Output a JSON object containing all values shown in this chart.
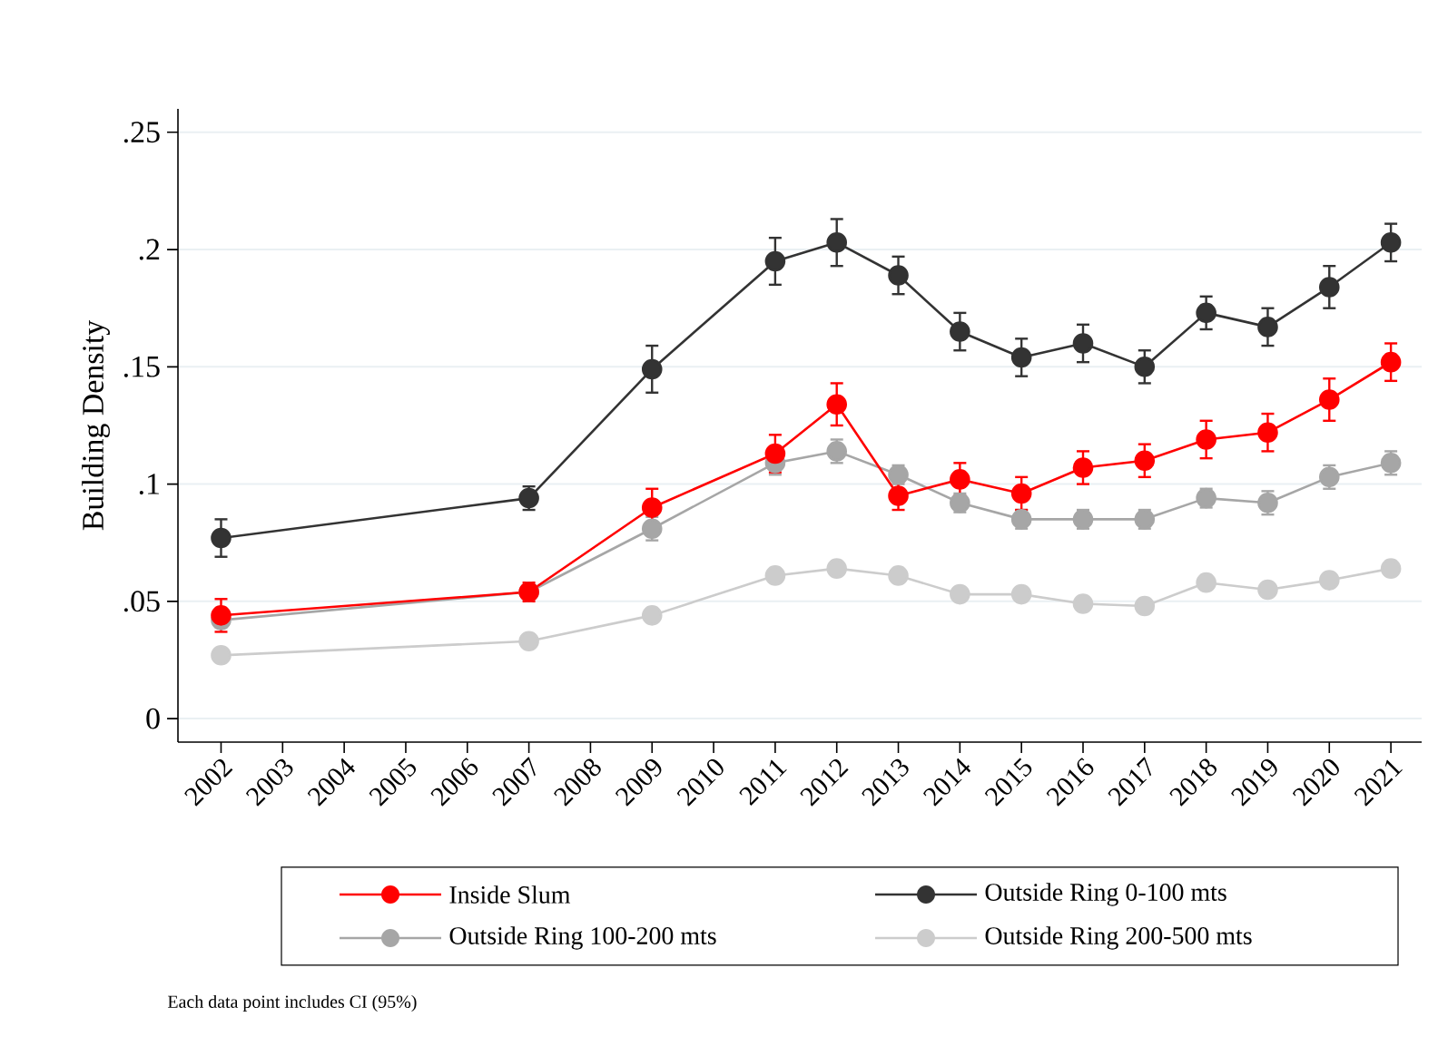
{
  "chart_data": {
    "type": "line",
    "ylabel": "Building Density",
    "x": [
      2002,
      2007,
      2009,
      2011,
      2012,
      2013,
      2014,
      2015,
      2016,
      2017,
      2018,
      2019,
      2020,
      2021
    ],
    "xlim": [
      2001.3,
      2021.5
    ],
    "xticks": [
      2002,
      2003,
      2004,
      2005,
      2006,
      2007,
      2008,
      2009,
      2010,
      2011,
      2012,
      2013,
      2014,
      2015,
      2016,
      2017,
      2018,
      2019,
      2020,
      2021
    ],
    "ylim": [
      -0.01,
      0.26
    ],
    "yticks": [
      {
        "value": 0,
        "label": "0"
      },
      {
        "value": 0.05,
        "label": ".05"
      },
      {
        "value": 0.1,
        "label": ".1"
      },
      {
        "value": 0.15,
        "label": ".15"
      },
      {
        "value": 0.2,
        "label": ".2"
      },
      {
        "value": 0.25,
        "label": ".25"
      }
    ],
    "grid": "y",
    "legend": "bottom",
    "marker": "circle",
    "line_style": "solid",
    "series": [
      {
        "name": "Inside Slum",
        "color": "#ff0000",
        "values": [
          0.044,
          0.054,
          0.09,
          0.113,
          0.134,
          0.095,
          0.102,
          0.096,
          0.107,
          0.11,
          0.119,
          0.122,
          0.136,
          0.152
        ],
        "errors": [
          0.007,
          0.004,
          0.008,
          0.008,
          0.009,
          0.006,
          0.007,
          0.007,
          0.007,
          0.007,
          0.008,
          0.008,
          0.009,
          0.008
        ]
      },
      {
        "name": "Outside Ring 0-100 mts",
        "color": "#333333",
        "values": [
          0.077,
          0.094,
          0.149,
          0.195,
          0.203,
          0.189,
          0.165,
          0.154,
          0.16,
          0.15,
          0.173,
          0.167,
          0.184,
          0.203
        ],
        "errors": [
          0.008,
          0.005,
          0.01,
          0.01,
          0.01,
          0.008,
          0.008,
          0.008,
          0.008,
          0.007,
          0.007,
          0.008,
          0.009,
          0.008
        ]
      },
      {
        "name": "Outside Ring 100-200 mts",
        "color": "#a6a6a6",
        "values": [
          0.042,
          0.054,
          0.081,
          0.109,
          0.114,
          0.104,
          0.092,
          0.085,
          0.085,
          0.085,
          0.094,
          0.092,
          0.103,
          0.109
        ],
        "errors": [
          0.003,
          null,
          0.005,
          0.005,
          0.005,
          0.004,
          0.004,
          0.004,
          0.004,
          0.004,
          0.004,
          0.005,
          0.005,
          0.005
        ]
      },
      {
        "name": "Outside Ring 200-500 mts",
        "color": "#cccccc",
        "values": [
          0.027,
          0.033,
          0.044,
          0.061,
          0.064,
          0.061,
          0.053,
          0.053,
          0.049,
          0.048,
          0.058,
          0.055,
          0.059,
          0.064
        ]
      }
    ],
    "annotations": [
      "Each data point includes CI (95%)"
    ]
  }
}
